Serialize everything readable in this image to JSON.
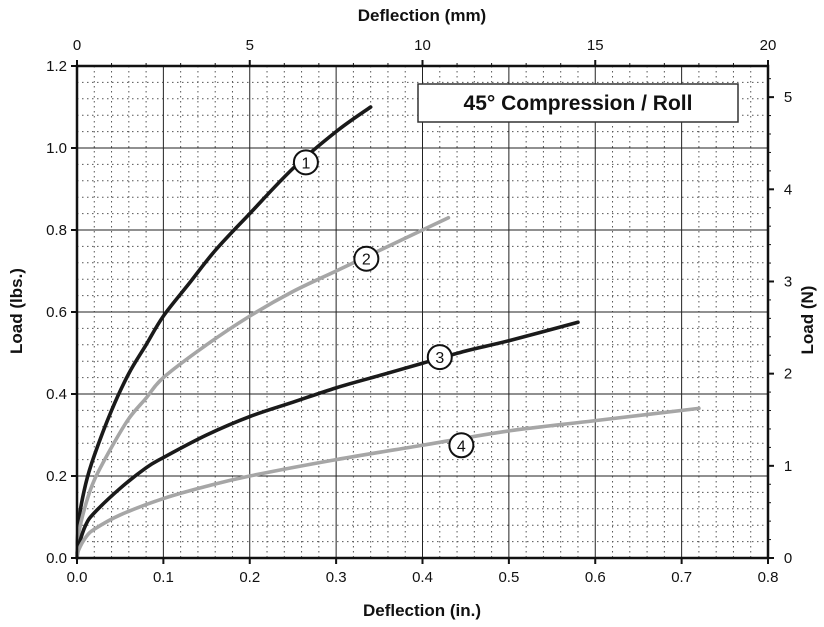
{
  "chart_data": {
    "type": "line",
    "title": "45° Compression / Roll",
    "xlabel": "Deflection (in.)",
    "ylabel": "Load (lbs.)",
    "x2label": "Deflection (mm)",
    "y2label": "Load (N)",
    "xlim": [
      0,
      0.8
    ],
    "ylim": [
      0,
      1.2
    ],
    "x2lim": [
      0,
      20
    ],
    "y2lim": [
      0,
      5.3378
    ],
    "xticks": [
      "0.0",
      "0.1",
      "0.2",
      "0.3",
      "0.4",
      "0.5",
      "0.6",
      "0.7",
      "0.8"
    ],
    "yticks": [
      "0.0",
      "0.2",
      "0.4",
      "0.6",
      "0.8",
      "1.0",
      "1.2"
    ],
    "x2ticks": [
      "0",
      "5",
      "10",
      "15",
      "20"
    ],
    "y2ticks": [
      "0",
      "1",
      "2",
      "3",
      "4",
      "5"
    ],
    "grid": true,
    "series": [
      {
        "name": "1",
        "color": "#1a1a1a",
        "label_at": [
          0.265,
          0.965
        ],
        "x": [
          0.002,
          0.01,
          0.02,
          0.04,
          0.06,
          0.08,
          0.1,
          0.13,
          0.16,
          0.2,
          0.25,
          0.3,
          0.34
        ],
        "y": [
          0.09,
          0.18,
          0.25,
          0.36,
          0.45,
          0.52,
          0.59,
          0.67,
          0.75,
          0.84,
          0.95,
          1.04,
          1.1
        ]
      },
      {
        "name": "2",
        "color": "#a6a6a6",
        "label_at": [
          0.335,
          0.73
        ],
        "x": [
          0.002,
          0.01,
          0.02,
          0.04,
          0.06,
          0.08,
          0.1,
          0.15,
          0.2,
          0.25,
          0.3,
          0.35,
          0.43
        ],
        "y": [
          0.06,
          0.13,
          0.19,
          0.27,
          0.34,
          0.39,
          0.44,
          0.52,
          0.59,
          0.65,
          0.7,
          0.75,
          0.83
        ]
      },
      {
        "name": "3",
        "color": "#1a1a1a",
        "label_at": [
          0.42,
          0.49
        ],
        "x": [
          0.002,
          0.01,
          0.02,
          0.05,
          0.08,
          0.1,
          0.15,
          0.2,
          0.25,
          0.3,
          0.35,
          0.4,
          0.45,
          0.5,
          0.58
        ],
        "y": [
          0.03,
          0.08,
          0.11,
          0.17,
          0.22,
          0.245,
          0.3,
          0.345,
          0.38,
          0.415,
          0.445,
          0.475,
          0.505,
          0.53,
          0.575
        ]
      },
      {
        "name": "4",
        "color": "#a6a6a6",
        "label_at": [
          0.445,
          0.275
        ],
        "x": [
          0.002,
          0.01,
          0.02,
          0.05,
          0.1,
          0.15,
          0.2,
          0.3,
          0.4,
          0.5,
          0.6,
          0.72
        ],
        "y": [
          0.02,
          0.05,
          0.07,
          0.105,
          0.145,
          0.175,
          0.2,
          0.24,
          0.275,
          0.31,
          0.335,
          0.365
        ]
      }
    ]
  }
}
